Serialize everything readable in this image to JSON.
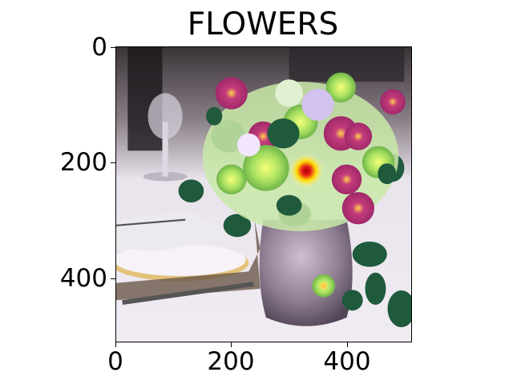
{
  "title": "FLOWERS",
  "image": {
    "subject": "flower bouquet in vase on dining table with plate and cutlery (heatmap overlay)"
  },
  "axes": {
    "x_ticks": [
      "0",
      "200",
      "400"
    ],
    "y_ticks": [
      "0",
      "200",
      "400"
    ]
  },
  "colors": {
    "background": "#ffffff",
    "axis": "#000000",
    "heatmap_hot": "#e41a1c",
    "heatmap_warm": "#ffd700"
  }
}
